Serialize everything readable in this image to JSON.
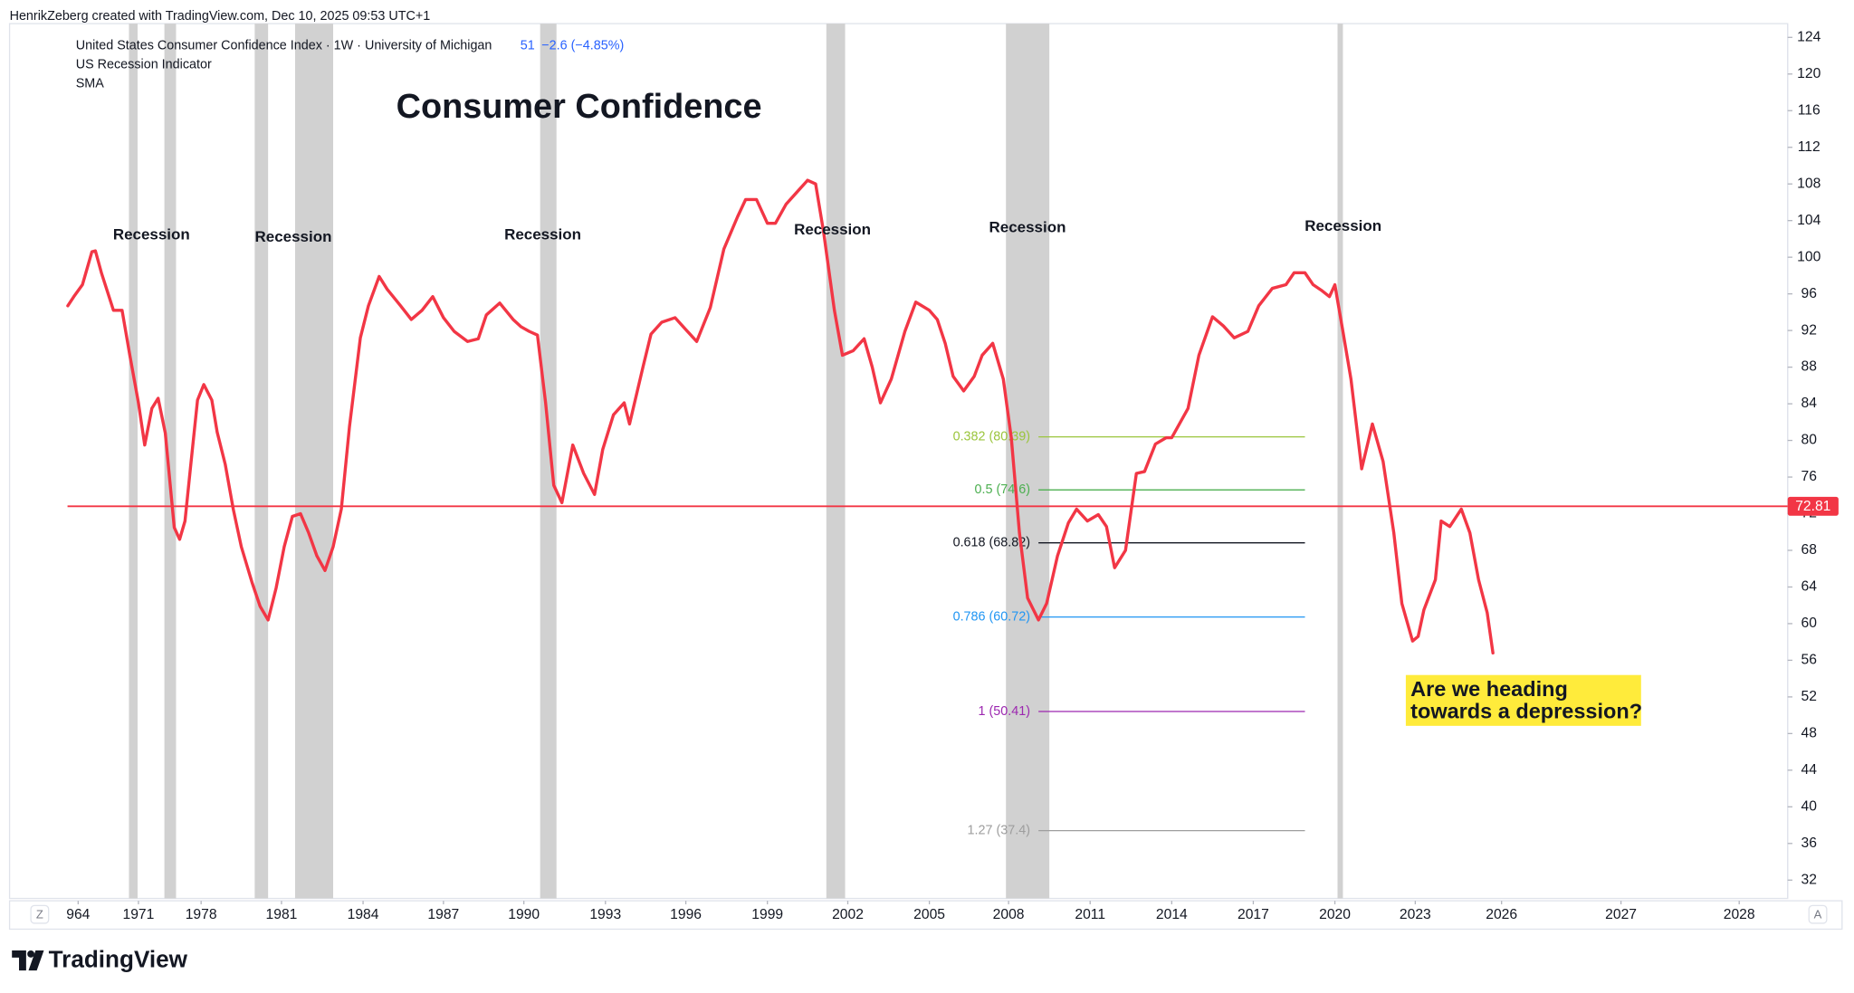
{
  "chart_data": {
    "type": "line",
    "header": "HenrikZeberg created with TradingView.com, Dec 10, 2025 09:53 UTC+1",
    "legend_symbol": "United States Consumer Confidence Index · 1W · University of Michigan",
    "last_value": 51,
    "change_label": "−2.6 (−4.85%)",
    "legend_items": [
      "US Recession Indicator",
      "SMA"
    ],
    "title": "Consumer Confidence",
    "annotations": [
      "Are we heading",
      "towards a depression?"
    ],
    "recession_labels": [
      "Recession",
      "Recession",
      "Recession",
      "Recession",
      "Recession",
      "Recession"
    ],
    "recessions": [
      [
        1969.9,
        1970.9
      ],
      [
        1973.9,
        1975.2
      ],
      [
        1980.0,
        1980.5
      ],
      [
        1981.5,
        1982.9
      ],
      [
        1990.6,
        1991.2
      ],
      [
        2001.2,
        2001.9
      ],
      [
        2007.9,
        2009.5
      ],
      [
        2020.1,
        2020.3
      ]
    ],
    "recession_color": "#d1d1d1",
    "x": [
      1962.8,
      1963.5,
      1964.5,
      1965.6,
      1966.0,
      1966.7,
      1968.1,
      1969.1,
      1970.0,
      1971.0,
      1971.7,
      1972.5,
      1973.2,
      1974.0,
      1975.0,
      1975.6,
      1976.2,
      1976.8,
      1977.6,
      1978.1,
      1978.4,
      1978.6,
      1978.9,
      1979.2,
      1979.5,
      1979.9,
      1980.2,
      1980.5,
      1980.8,
      1981.1,
      1981.4,
      1981.7,
      1982.0,
      1982.3,
      1982.6,
      1982.9,
      1983.2,
      1983.5,
      1983.9,
      1984.2,
      1984.6,
      1984.9,
      1985.4,
      1985.8,
      1986.2,
      1986.6,
      1987.0,
      1987.4,
      1987.9,
      1988.3,
      1988.6,
      1989.1,
      1989.6,
      1989.9,
      1990.2,
      1990.5,
      1990.8,
      1991.1,
      1991.4,
      1991.8,
      1992.2,
      1992.6,
      1992.9,
      1993.3,
      1993.7,
      1993.9,
      1994.4,
      1994.7,
      1995.1,
      1995.6,
      1996.0,
      1996.4,
      1996.9,
      1997.4,
      1997.9,
      1998.2,
      1998.6,
      1999.0,
      1999.3,
      1999.7,
      2000.1,
      2000.5,
      2000.8,
      2001.1,
      2001.5,
      2001.8,
      2002.2,
      2002.6,
      2002.9,
      2003.2,
      2003.6,
      2004.1,
      2004.5,
      2005.0,
      2005.3,
      2005.6,
      2005.9,
      2006.3,
      2006.7,
      2007.0,
      2007.4,
      2007.8,
      2008.1,
      2008.4,
      2008.7,
      2009.1,
      2009.4,
      2009.8,
      2010.2,
      2010.5,
      2010.9,
      2011.3,
      2011.6,
      2011.9,
      2012.3,
      2012.7,
      2013.0,
      2013.4,
      2013.8,
      2014.0,
      2014.6,
      2015.0,
      2015.5,
      2015.9,
      2016.3,
      2016.8,
      2017.2,
      2017.7,
      2018.2,
      2018.5,
      2018.9,
      2019.2,
      2019.5,
      2019.8,
      2020.0,
      2020.3,
      2020.6,
      2021.0,
      2021.4,
      2021.8,
      2022.2,
      2022.5,
      2022.9,
      2023.1,
      2023.3,
      2023.7,
      2023.9,
      2024.2,
      2024.6,
      2024.9,
      2025.2,
      2025.5,
      2025.7
    ],
    "series": [
      {
        "name": "SMA",
        "color": "#f23645",
        "values": [
          94.7,
          95.7,
          97.0,
          100.6,
          100.7,
          98.3,
          94.2,
          94.2,
          89.3,
          84.1,
          79.5,
          83.5,
          84.6,
          80.8,
          70.5,
          69.2,
          71.2,
          76.9,
          84.4,
          86.1,
          84.4,
          80.9,
          77.4,
          72.5,
          68.4,
          64.5,
          61.9,
          60.4,
          63.9,
          68.4,
          71.7,
          72.0,
          69.9,
          67.4,
          65.8,
          68.4,
          72.5,
          81.5,
          91.2,
          94.7,
          97.9,
          96.5,
          94.7,
          93.2,
          94.2,
          95.7,
          93.4,
          91.9,
          90.8,
          91.1,
          93.7,
          95.0,
          93.2,
          92.4,
          91.9,
          91.5,
          84.1,
          75.1,
          73.2,
          79.5,
          76.4,
          74.1,
          79.0,
          82.8,
          84.1,
          81.8,
          88.0,
          91.6,
          92.9,
          93.4,
          92.1,
          90.8,
          94.5,
          100.9,
          104.4,
          106.3,
          106.3,
          103.7,
          103.7,
          105.8,
          107.1,
          108.4,
          108.0,
          102.7,
          94.2,
          89.3,
          89.8,
          91.1,
          88.0,
          84.1,
          86.7,
          91.9,
          95.1,
          94.2,
          93.2,
          90.6,
          87.0,
          85.4,
          87.0,
          89.3,
          90.6,
          86.7,
          80.3,
          69.9,
          62.8,
          60.4,
          62.2,
          67.4,
          71.0,
          72.5,
          71.2,
          71.9,
          70.6,
          66.1,
          68.0,
          76.4,
          76.6,
          79.6,
          80.3,
          80.3,
          83.5,
          89.3,
          93.5,
          92.5,
          91.2,
          91.9,
          94.7,
          96.6,
          97.0,
          98.3,
          98.3,
          97.0,
          96.4,
          95.7,
          97.0,
          91.9,
          86.7,
          76.9,
          81.8,
          77.7,
          69.9,
          62.2,
          58.1,
          58.6,
          61.5,
          64.8,
          71.2,
          70.6,
          72.5,
          69.9,
          64.8,
          61.2,
          56.8
        ]
      }
    ],
    "hline": {
      "value": 72.81,
      "color": "#f23645"
    },
    "fib_range": [
      2009.1,
      2018.9
    ],
    "fib_levels": [
      {
        "label": "0.382 (80.39)",
        "value": 80.39,
        "color": "#9bc53d"
      },
      {
        "label": "0.5 (74.6)",
        "value": 74.6,
        "color": "#4caf50"
      },
      {
        "label": "0.618 (68.82)",
        "value": 68.82,
        "color": "#131722"
      },
      {
        "label": "0.786 (60.72)",
        "value": 60.72,
        "color": "#2196f3"
      },
      {
        "label": "1 (50.41)",
        "value": 50.41,
        "color": "#9c27b0"
      },
      {
        "label": "1.27 (37.4)",
        "value": 37.4,
        "color": "#9e9e9e"
      }
    ],
    "ylim": [
      30,
      125.5
    ],
    "yticks": [
      32,
      36,
      40,
      44,
      48,
      52,
      56,
      60,
      64,
      68,
      72,
      76,
      80,
      84,
      88,
      92,
      96,
      100,
      104,
      108,
      112,
      116,
      120,
      124
    ],
    "xticks": [
      {
        "value": 1964,
        "label": "964"
      },
      1971,
      1978,
      1981,
      1984,
      1987,
      1990,
      1993,
      1996,
      1999,
      2002,
      2005,
      2008,
      2011,
      2014,
      2017,
      2020,
      2023,
      2026,
      2027,
      2028
    ],
    "grid": false,
    "scale_buttons": [
      "Z",
      "A"
    ],
    "brand": "TradingView"
  }
}
